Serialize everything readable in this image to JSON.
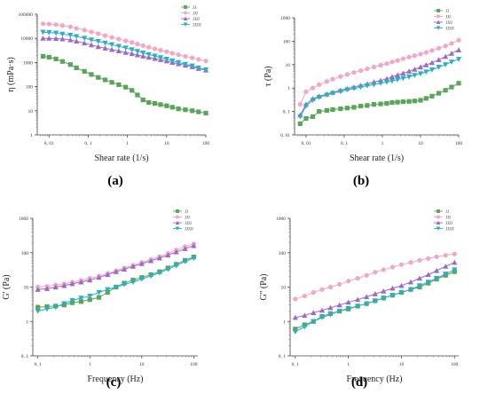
{
  "chart_data": [
    {
      "type": "line",
      "panel_label": "(a)",
      "xlabel": "Shear rate (1/s)",
      "ylabel": "η (mPa·s)",
      "xscale": "log",
      "yscale": "log",
      "xlim": [
        0.005,
        100
      ],
      "ylim": [
        1,
        100000
      ],
      "xticks": [
        0.01,
        0.1,
        1,
        10,
        100
      ],
      "xtick_labels": [
        "0, 01",
        "0, 1",
        "1",
        "10",
        "100"
      ],
      "yticks": [
        1,
        10,
        100,
        1000,
        10000,
        100000
      ],
      "ytick_labels": [
        "1",
        "10",
        "100",
        "1000",
        "10000",
        "100000"
      ],
      "legend": "top-right",
      "series": [
        {
          "name": "JJ",
          "color": "#5aa55a",
          "marker": "square",
          "x": [
            0.007,
            0.01,
            0.015,
            0.022,
            0.035,
            0.05,
            0.08,
            0.12,
            0.18,
            0.27,
            0.4,
            0.6,
            0.9,
            1.3,
            1.8,
            2.5,
            3.5,
            5,
            7,
            10,
            14,
            20,
            30,
            45,
            65,
            100
          ],
          "y": [
            1800,
            1650,
            1400,
            1100,
            820,
            600,
            430,
            320,
            240,
            190,
            150,
            120,
            95,
            70,
            45,
            28,
            22,
            20,
            18,
            16,
            14,
            12,
            11,
            10,
            9,
            8
          ]
        },
        {
          "name": "JJJ",
          "color": "#f4a6c6",
          "marker": "circle",
          "x": [
            0.007,
            0.01,
            0.015,
            0.022,
            0.035,
            0.05,
            0.08,
            0.12,
            0.18,
            0.27,
            0.4,
            0.6,
            0.9,
            1.3,
            1.8,
            2.5,
            3.5,
            5,
            7,
            10,
            14,
            20,
            30,
            45,
            65,
            100
          ],
          "y": [
            40000,
            39000,
            37000,
            34000,
            30000,
            26000,
            22000,
            18500,
            15500,
            13000,
            11000,
            9300,
            7900,
            6800,
            5800,
            5000,
            4300,
            3700,
            3200,
            2800,
            2400,
            2100,
            1800,
            1550,
            1350,
            1150
          ]
        },
        {
          "name": "JJJJ",
          "color": "#9b6ac6",
          "marker": "triangle",
          "x": [
            0.007,
            0.01,
            0.015,
            0.022,
            0.035,
            0.05,
            0.08,
            0.12,
            0.18,
            0.27,
            0.4,
            0.6,
            0.9,
            1.3,
            1.8,
            2.5,
            3.5,
            5,
            7,
            10,
            14,
            20,
            30,
            45,
            65,
            100
          ],
          "y": [
            10000,
            10000,
            9800,
            9400,
            8600,
            7600,
            6400,
            5300,
            4500,
            3900,
            3400,
            3000,
            2600,
            2300,
            2050,
            1820,
            1620,
            1450,
            1300,
            1150,
            1000,
            880,
            760,
            660,
            560,
            480
          ]
        },
        {
          "name": "JJJJJ",
          "color": "#2ab0c2",
          "marker": "triangle-down",
          "x": [
            0.007,
            0.01,
            0.015,
            0.022,
            0.035,
            0.05,
            0.08,
            0.12,
            0.18,
            0.27,
            0.4,
            0.6,
            0.9,
            1.3,
            1.8,
            2.5,
            3.5,
            5,
            7,
            10,
            14,
            20,
            30,
            45,
            65,
            100
          ],
          "y": [
            18000,
            17500,
            16500,
            15000,
            13500,
            12000,
            10200,
            8700,
            7500,
            6400,
            5500,
            4700,
            4000,
            3400,
            2900,
            2500,
            2150,
            1850,
            1600,
            1380,
            1180,
            1000,
            850,
            720,
            600,
            500
          ]
        }
      ]
    },
    {
      "type": "line",
      "panel_label": "(b)",
      "xlabel": "Shear rate (1/s)",
      "ylabel": "τ (Pa)",
      "xscale": "log",
      "yscale": "log",
      "xlim": [
        0.005,
        100
      ],
      "ylim": [
        0.01,
        1000
      ],
      "xticks": [
        0.01,
        0.1,
        1,
        10,
        100
      ],
      "xtick_labels": [
        "0, 01",
        "0, 1",
        "1",
        "10",
        "100"
      ],
      "yticks": [
        0.01,
        0.1,
        1,
        10,
        100,
        1000
      ],
      "ytick_labels": [
        "0, 01",
        "0, 1",
        "1",
        "10",
        "100",
        "1000"
      ],
      "legend": "top-right",
      "series": [
        {
          "name": "JJ",
          "color": "#5aa55a",
          "marker": "square",
          "x": [
            0.007,
            0.01,
            0.015,
            0.022,
            0.035,
            0.05,
            0.08,
            0.12,
            0.18,
            0.27,
            0.4,
            0.6,
            0.9,
            1.3,
            1.8,
            2.5,
            3.5,
            5,
            7,
            10,
            14,
            20,
            30,
            45,
            65,
            100
          ],
          "y": [
            0.03,
            0.05,
            0.06,
            0.1,
            0.11,
            0.12,
            0.13,
            0.14,
            0.15,
            0.17,
            0.18,
            0.2,
            0.21,
            0.22,
            0.24,
            0.25,
            0.26,
            0.27,
            0.28,
            0.3,
            0.36,
            0.45,
            0.6,
            0.8,
            1.1,
            1.6
          ]
        },
        {
          "name": "JJJ",
          "color": "#f4a6c6",
          "marker": "circle",
          "x": [
            0.007,
            0.01,
            0.015,
            0.022,
            0.035,
            0.05,
            0.08,
            0.12,
            0.18,
            0.27,
            0.4,
            0.6,
            0.9,
            1.3,
            1.8,
            2.5,
            3.5,
            5,
            7,
            10,
            14,
            20,
            30,
            45,
            65,
            100
          ],
          "y": [
            0.2,
            0.7,
            1.0,
            1.4,
            1.9,
            2.4,
            3.1,
            3.8,
            4.6,
            5.5,
            6.6,
            7.9,
            9.4,
            11,
            13,
            15,
            18,
            21,
            24,
            28,
            33,
            40,
            50,
            62,
            80,
            110
          ]
        },
        {
          "name": "JJJJ",
          "color": "#9b6ac6",
          "marker": "triangle",
          "x": [
            0.007,
            0.01,
            0.015,
            0.022,
            0.035,
            0.05,
            0.08,
            0.12,
            0.18,
            0.27,
            0.4,
            0.6,
            0.9,
            1.3,
            1.8,
            2.5,
            3.5,
            5,
            7,
            10,
            14,
            20,
            30,
            45,
            65,
            100
          ],
          "y": [
            0.07,
            0.2,
            0.35,
            0.45,
            0.55,
            0.65,
            0.8,
            0.95,
            1.1,
            1.3,
            1.5,
            1.8,
            2.1,
            2.5,
            3.0,
            3.6,
            4.3,
            5.2,
            6.3,
            7.8,
            9.7,
            12,
            16,
            22,
            30,
            42
          ]
        },
        {
          "name": "JJJJJ",
          "color": "#2ab0c2",
          "marker": "triangle-down",
          "x": [
            0.007,
            0.01,
            0.015,
            0.022,
            0.035,
            0.05,
            0.08,
            0.12,
            0.18,
            0.27,
            0.4,
            0.6,
            0.9,
            1.3,
            1.8,
            2.5,
            3.5,
            5,
            7,
            10,
            14,
            20,
            30,
            45,
            65,
            100
          ],
          "y": [
            0.06,
            0.17,
            0.3,
            0.4,
            0.5,
            0.6,
            0.72,
            0.84,
            0.96,
            1.1,
            1.25,
            1.4,
            1.6,
            1.8,
            2.0,
            2.3,
            2.6,
            3.0,
            3.5,
            4.1,
            4.9,
            6,
            7.8,
            10,
            13,
            17
          ]
        }
      ]
    },
    {
      "type": "line",
      "panel_label": "(c)",
      "xlabel": "Frequency (Hz)",
      "ylabel": "G' (Pa)",
      "xscale": "log",
      "yscale": "log",
      "xlim": [
        0.08,
        120
      ],
      "ylim": [
        0.1,
        1000
      ],
      "xticks": [
        0.1,
        1,
        10,
        100
      ],
      "xtick_labels": [
        "0, 1",
        "1",
        "10",
        "100"
      ],
      "yticks": [
        0.1,
        1,
        10,
        100,
        1000
      ],
      "ytick_labels": [
        "0, 1",
        "1",
        "10",
        "100",
        "1000"
      ],
      "legend": "top-right",
      "series": [
        {
          "name": "JJ",
          "color": "#5aa55a",
          "marker": "square",
          "x": [
            0.1,
            0.15,
            0.22,
            0.32,
            0.46,
            0.68,
            1.0,
            1.5,
            2.2,
            3.2,
            4.6,
            6.8,
            10,
            15,
            22,
            32,
            46,
            68,
            100
          ],
          "y": [
            2.6,
            2.7,
            2.8,
            3.0,
            3.5,
            3.8,
            4.3,
            5.0,
            7.0,
            10,
            13,
            16,
            19,
            23,
            28,
            36,
            46,
            60,
            75
          ]
        },
        {
          "name": "JJJ",
          "color": "#f4a6c6",
          "marker": "circle",
          "x": [
            0.1,
            0.15,
            0.22,
            0.32,
            0.46,
            0.68,
            1.0,
            1.5,
            2.2,
            3.2,
            4.6,
            6.8,
            10,
            15,
            22,
            32,
            46,
            68,
            100
          ],
          "y": [
            10,
            10.5,
            11.5,
            12.5,
            14,
            15.5,
            18,
            21,
            25,
            30,
            36,
            43,
            52,
            63,
            77,
            95,
            120,
            150,
            180
          ]
        },
        {
          "name": "JJJJ",
          "color": "#9b6ac6",
          "marker": "triangle",
          "x": [
            0.1,
            0.15,
            0.22,
            0.32,
            0.46,
            0.68,
            1.0,
            1.5,
            2.2,
            3.2,
            4.6,
            6.8,
            10,
            15,
            22,
            32,
            46,
            68,
            100
          ],
          "y": [
            8.5,
            9,
            10,
            11,
            12.5,
            14,
            16,
            19,
            23,
            28,
            33,
            40,
            48,
            58,
            70,
            85,
            105,
            130,
            160
          ]
        },
        {
          "name": "JJJJJ",
          "color": "#2ab0c2",
          "marker": "triangle-down",
          "x": [
            0.1,
            0.15,
            0.22,
            0.32,
            0.46,
            0.68,
            1.0,
            1.5,
            2.2,
            3.2,
            4.6,
            6.8,
            10,
            15,
            22,
            32,
            46,
            68,
            100
          ],
          "y": [
            2.0,
            2.3,
            2.6,
            3.3,
            4.1,
            4.8,
            5.5,
            7.0,
            8.5,
            10,
            12,
            14,
            17,
            21,
            26,
            33,
            42,
            55,
            70
          ]
        }
      ]
    },
    {
      "type": "line",
      "panel_label": "(d)",
      "xlabel": "Frequency (Hz)",
      "ylabel": "G'' (Pa)",
      "xscale": "log",
      "yscale": "log",
      "xlim": [
        0.08,
        120
      ],
      "ylim": [
        0.1,
        1000
      ],
      "xticks": [
        0.1,
        1,
        10,
        100
      ],
      "xtick_labels": [
        "0, 1",
        "1",
        "10",
        "100"
      ],
      "yticks": [
        0.1,
        1,
        10,
        100,
        1000
      ],
      "ytick_labels": [
        "0, 1",
        "1",
        "10",
        "100",
        "1000"
      ],
      "legend": "top-right",
      "series": [
        {
          "name": "JJ",
          "color": "#5aa55a",
          "marker": "square",
          "x": [
            0.1,
            0.15,
            0.22,
            0.32,
            0.46,
            0.68,
            1.0,
            1.5,
            2.2,
            3.2,
            4.6,
            6.8,
            10,
            15,
            22,
            32,
            46,
            68,
            100
          ],
          "y": [
            0.6,
            0.8,
            1.0,
            1.4,
            1.7,
            2.0,
            2.3,
            2.8,
            3.3,
            4.0,
            4.8,
            5.8,
            7.0,
            8.5,
            10,
            13,
            17,
            22,
            28
          ]
        },
        {
          "name": "JJJ",
          "color": "#f4a6c6",
          "marker": "circle",
          "x": [
            0.1,
            0.15,
            0.22,
            0.32,
            0.46,
            0.68,
            1.0,
            1.5,
            2.2,
            3.2,
            4.6,
            6.8,
            10,
            15,
            22,
            32,
            46,
            68,
            100
          ],
          "y": [
            4.5,
            5.5,
            7,
            8.5,
            10,
            12,
            15,
            18,
            22,
            27,
            32,
            38,
            45,
            52,
            60,
            68,
            76,
            84,
            92
          ]
        },
        {
          "name": "JJJJ",
          "color": "#9b6ac6",
          "marker": "triangle",
          "x": [
            0.1,
            0.15,
            0.22,
            0.32,
            0.46,
            0.68,
            1.0,
            1.5,
            2.2,
            3.2,
            4.6,
            6.8,
            10,
            15,
            22,
            32,
            46,
            68,
            100
          ],
          "y": [
            1.3,
            1.5,
            1.8,
            2.1,
            2.5,
            3.0,
            3.6,
            4.3,
            5.2,
            6.3,
            7.6,
            9.2,
            11,
            14,
            18,
            23,
            30,
            40,
            52
          ]
        },
        {
          "name": "JJJJJ",
          "color": "#2ab0c2",
          "marker": "triangle-down",
          "x": [
            0.1,
            0.15,
            0.22,
            0.32,
            0.46,
            0.68,
            1.0,
            1.5,
            2.2,
            3.2,
            4.6,
            6.8,
            10,
            15,
            22,
            32,
            46,
            68,
            100
          ],
          "y": [
            0.5,
            0.7,
            1.0,
            1.3,
            1.6,
            2.0,
            2.4,
            2.8,
            3.3,
            4.0,
            4.8,
            5.8,
            7,
            8.6,
            11,
            14,
            18,
            24,
            32
          ]
        }
      ]
    }
  ]
}
